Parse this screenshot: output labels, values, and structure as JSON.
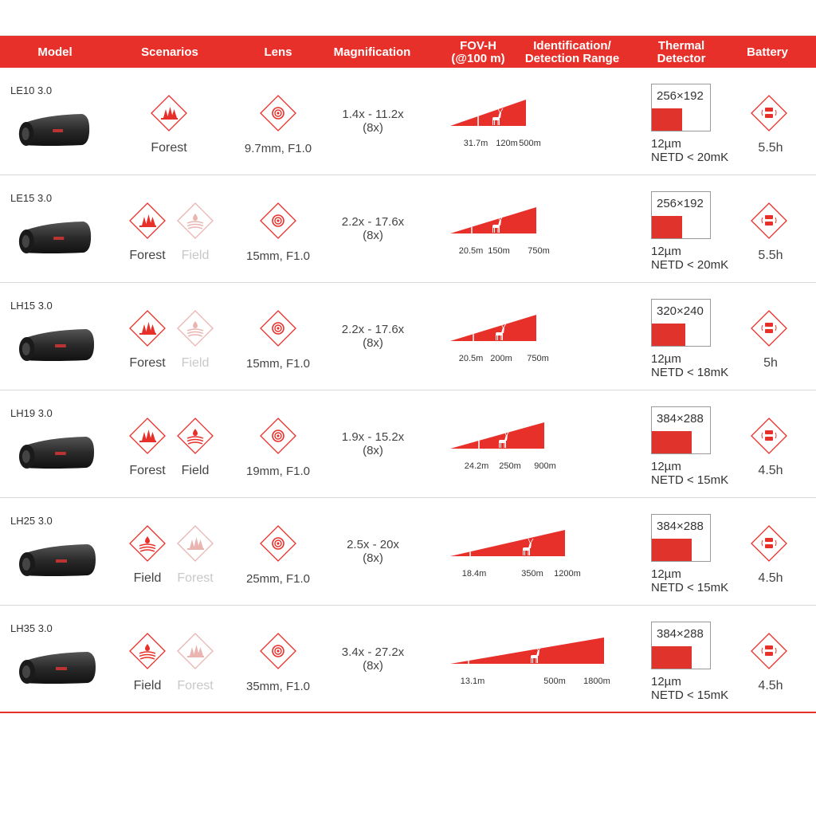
{
  "colors": {
    "accent": "#e8302a",
    "faded": "#e9b3af"
  },
  "header": {
    "model": "Model",
    "scenarios": "Scenarios",
    "lens": "Lens",
    "magnification": "Magnification",
    "fov_line1": "FOV-H",
    "fov_line2": "(@100 m)",
    "range_line1": "Identification/",
    "range_line2": "Detection Range",
    "thermal_line1": "Thermal",
    "thermal_line2": "Detector",
    "battery": "Battery"
  },
  "rows": [
    {
      "model": "LE10 3.0",
      "scenarios": [
        {
          "label": "Forest",
          "icon": "forest-icon",
          "active": true
        }
      ],
      "lens": "9.7mm, F1.0",
      "magnification": "1.4x - 11.2x",
      "zoom": "(8x)",
      "fov": "31.7m",
      "identification": "120m",
      "detection": "500m",
      "resolution": "256×192",
      "pixel": "12µm",
      "netd": "NETD < 20mK",
      "battery": "5.5h"
    },
    {
      "model": "LE15 3.0",
      "scenarios": [
        {
          "label": "Forest",
          "icon": "forest-icon",
          "active": true
        },
        {
          "label": "Field",
          "icon": "field-icon",
          "active": false
        }
      ],
      "lens": "15mm, F1.0",
      "magnification": "2.2x - 17.6x",
      "zoom": "(8x)",
      "fov": "20.5m",
      "identification": "150m",
      "detection": "750m",
      "resolution": "256×192",
      "pixel": "12µm",
      "netd": "NETD < 20mK",
      "battery": "5.5h"
    },
    {
      "model": "LH15 3.0",
      "scenarios": [
        {
          "label": "Forest",
          "icon": "forest-icon",
          "active": true
        },
        {
          "label": "Field",
          "icon": "field-icon",
          "active": false
        }
      ],
      "lens": "15mm, F1.0",
      "magnification": "2.2x - 17.6x",
      "zoom": "(8x)",
      "fov": "20.5m",
      "identification": "200m",
      "detection": "750m",
      "resolution": "320×240",
      "pixel": "12µm",
      "netd": "NETD < 18mK",
      "battery": "5h"
    },
    {
      "model": "LH19 3.0",
      "scenarios": [
        {
          "label": "Forest",
          "icon": "forest-icon",
          "active": true
        },
        {
          "label": "Field",
          "icon": "field-icon",
          "active": true
        }
      ],
      "lens": "19mm, F1.0",
      "magnification": "1.9x - 15.2x",
      "zoom": "(8x)",
      "fov": "24.2m",
      "identification": "250m",
      "detection": "900m",
      "resolution": "384×288",
      "pixel": "12µm",
      "netd": "NETD < 15mK",
      "battery": "4.5h"
    },
    {
      "model": "LH25 3.0",
      "scenarios": [
        {
          "label": "Field",
          "icon": "field-icon",
          "active": true
        },
        {
          "label": "Forest",
          "icon": "forest-icon",
          "active": false
        }
      ],
      "lens": "25mm, F1.0",
      "magnification": "2.5x - 20x",
      "zoom": "(8x)",
      "fov": "18.4m",
      "identification": "350m",
      "detection": "1200m",
      "resolution": "384×288",
      "pixel": "12µm",
      "netd": "NETD < 15mK",
      "battery": "4.5h"
    },
    {
      "model": "LH35 3.0",
      "scenarios": [
        {
          "label": "Field",
          "icon": "field-icon",
          "active": true
        },
        {
          "label": "Forest",
          "icon": "forest-icon",
          "active": false
        }
      ],
      "lens": "35mm, F1.0",
      "magnification": "3.4x - 27.2x",
      "zoom": "(8x)",
      "fov": "13.1m",
      "identification": "500m",
      "detection": "1800m",
      "resolution": "384×288",
      "pixel": "12µm",
      "netd": "NETD < 15mK",
      "battery": "4.5h"
    }
  ]
}
